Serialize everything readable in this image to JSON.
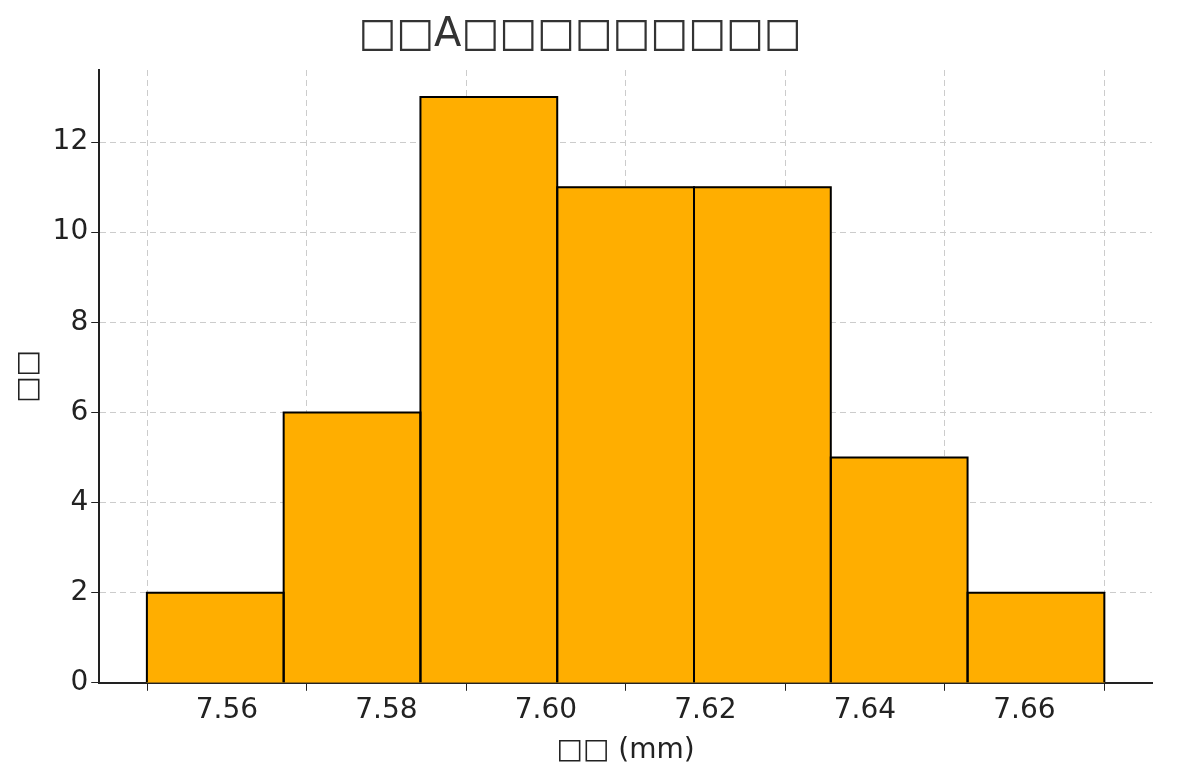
{
  "chart_data": {
    "type": "histogram",
    "title": "□□A□□□□□□□□□",
    "xlabel": "□□ (mm)",
    "ylabel": "□□",
    "bins": [
      7.55,
      7.5671,
      7.5843,
      7.6014,
      7.6186,
      7.6357,
      7.6529,
      7.67
    ],
    "values": [
      2,
      6,
      13,
      11,
      11,
      5,
      2
    ],
    "color": "#ffae00",
    "xlim": [
      7.544,
      7.676
    ],
    "xticks": [
      {
        "value": 7.56,
        "label": "7.56"
      },
      {
        "value": 7.58,
        "label": "7.58"
      },
      {
        "value": 7.6,
        "label": "7.60"
      },
      {
        "value": 7.62,
        "label": "7.62"
      },
      {
        "value": 7.64,
        "label": "7.64"
      },
      {
        "value": 7.66,
        "label": "7.66"
      }
    ],
    "ylim": [
      0,
      13.6
    ],
    "yticks": [
      0,
      2,
      4,
      6,
      8,
      10,
      12
    ],
    "grid": true
  }
}
